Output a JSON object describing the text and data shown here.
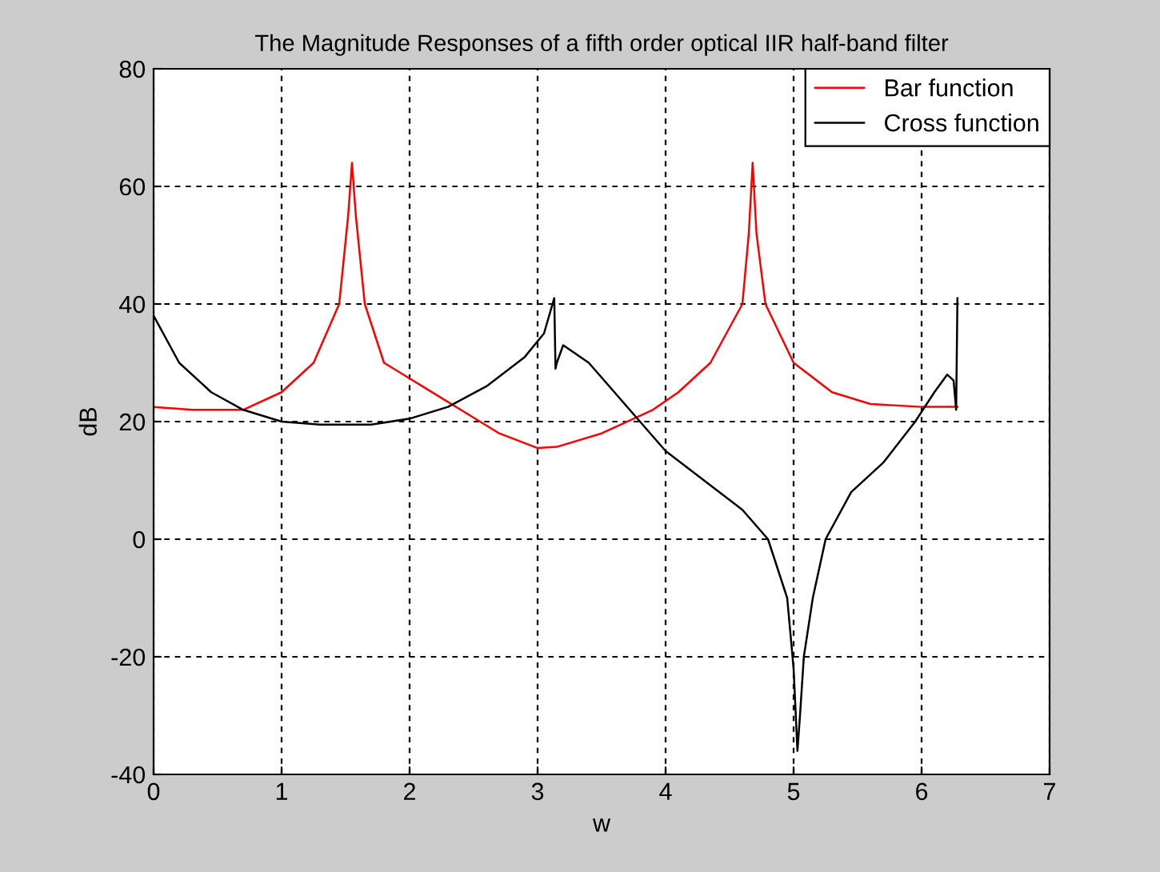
{
  "chart_data": {
    "type": "line",
    "title": "The Magnitude Responses of a fifth order optical IIR half-band filter",
    "xlabel": "w",
    "ylabel": "dB",
    "xlim": [
      0,
      7
    ],
    "xticks": [
      0,
      1,
      2,
      3,
      4,
      5,
      6,
      7
    ],
    "ylim": [
      -40,
      80
    ],
    "yticks": [
      -40,
      -20,
      0,
      20,
      40,
      60,
      80
    ],
    "grid": true,
    "legend": "top right",
    "line_style": "solid",
    "series": [
      {
        "name": "Bar function",
        "color": "#ff0000",
        "x": [
          0,
          0.3,
          0.7,
          1.0,
          1.25,
          1.45,
          1.52,
          1.55,
          1.58,
          1.65,
          1.8,
          2.1,
          2.4,
          2.7,
          3.0,
          3.15,
          3.5,
          3.9,
          4.1,
          4.35,
          4.6,
          4.65,
          4.68,
          4.71,
          4.78,
          5.0,
          5.3,
          5.6,
          6.0,
          6.28
        ],
        "values": [
          22.5,
          22,
          22,
          25,
          30,
          40,
          55,
          64,
          55,
          40,
          30,
          26,
          22,
          18,
          15.5,
          15.7,
          18,
          22,
          25,
          30,
          40,
          52,
          64,
          52,
          40,
          30,
          25,
          23,
          22.5,
          22.5
        ]
      },
      {
        "name": "Cross function",
        "color": "#000000",
        "x": [
          0,
          0.2,
          0.45,
          0.7,
          1.0,
          1.3,
          1.7,
          2.0,
          2.3,
          2.6,
          2.9,
          3.05,
          3.13,
          3.14,
          3.15,
          3.2,
          3.4,
          3.6,
          3.8,
          4.0,
          4.3,
          4.6,
          4.8,
          4.95,
          5.0,
          5.03,
          5.05,
          5.08,
          5.15,
          5.25,
          5.45,
          5.7,
          5.95,
          6.1,
          6.2,
          6.25,
          6.27,
          6.28
        ],
        "values": [
          38,
          30,
          25,
          22,
          20,
          19.5,
          19.5,
          20.5,
          22.5,
          26,
          31,
          35,
          41,
          29,
          30,
          33,
          30,
          25,
          20,
          15,
          10,
          5,
          0,
          -10,
          -22,
          -36,
          -30,
          -20,
          -10,
          0,
          8,
          13,
          20,
          25,
          28,
          27,
          22,
          41
        ]
      }
    ]
  }
}
